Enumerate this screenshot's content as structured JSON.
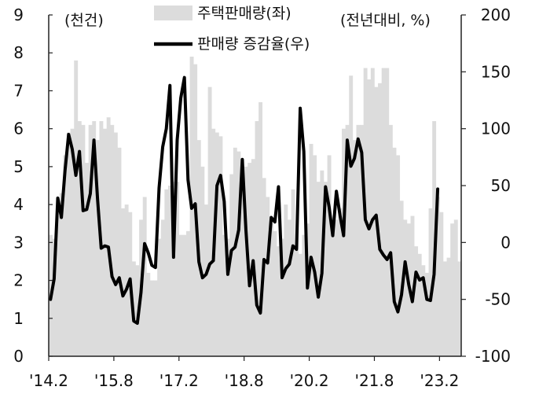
{
  "chart_data": {
    "type": "bar+line",
    "title": "",
    "left_axis": {
      "unit_label": "(천건)",
      "range": [
        0,
        9
      ],
      "ticks": [
        "0",
        "1",
        "2",
        "3",
        "4",
        "5",
        "6",
        "7",
        "8",
        "9"
      ]
    },
    "right_axis": {
      "unit_label": "(전년대비, %)",
      "range": [
        -100,
        200
      ],
      "ticks": [
        "-100",
        "-50",
        "0",
        "50",
        "100",
        "150",
        "200"
      ]
    },
    "x_axis": {
      "tick_labels": [
        "'14.2",
        "'15.8",
        "'17.2",
        "'18.8",
        "'20.2",
        "'21.8",
        "'23.2"
      ],
      "tick_indices": [
        0,
        18,
        36,
        54,
        72,
        90,
        108
      ]
    },
    "grid": false,
    "legend": {
      "placement": "top-center",
      "bar_label": "주택판매량(좌)",
      "line_label": "판매량 증감율(우)"
    },
    "colors": {
      "bar": "#dcdcdc",
      "line": "#000000",
      "axis": "#222222"
    },
    "bars": {
      "name": "주택판매량(좌)",
      "axis": "left",
      "values": [
        3.2,
        3.1,
        3.7,
        4.3,
        5.3,
        5.9,
        6.0,
        7.8,
        6.2,
        6.1,
        5.1,
        6.1,
        6.2,
        5.7,
        6.2,
        6.0,
        6.3,
        6.1,
        5.9,
        5.5,
        3.9,
        4.0,
        3.8,
        2.5,
        2.4,
        3.6,
        4.2,
        2.2,
        2.0,
        2.0,
        3.1,
        3.6,
        4.4,
        4.5,
        4.6,
        4.6,
        3.2,
        3.2,
        3.3,
        7.9,
        7.7,
        5.7,
        5.0,
        4.0,
        7.1,
        6.0,
        5.9,
        5.8,
        3.2,
        3.1,
        4.8,
        5.5,
        5.4,
        5.2,
        5.0,
        5.1,
        5.2,
        6.2,
        6.7,
        4.7,
        4.2,
        3.5,
        3.3,
        2.9,
        3.1,
        4.0,
        3.6,
        4.4,
        2.8,
        2.7,
        3.2,
        3.5,
        5.6,
        5.3,
        4.6,
        4.9,
        4.6,
        5.3,
        3.4,
        3.6,
        3.9,
        6.0,
        6.1,
        7.4,
        5.7,
        6.1,
        6.1,
        7.6,
        7.3,
        7.6,
        7.1,
        7.2,
        7.6,
        7.6,
        6.1,
        5.5,
        5.3,
        4.1,
        3.6,
        3.5,
        3.7,
        2.9,
        2.7,
        2.4,
        2.2,
        3.9,
        6.2,
        4.2,
        3.8,
        2.5,
        2.6,
        3.5,
        3.6,
        2.5
      ]
    },
    "line": {
      "name": "판매량 증감율(우)",
      "axis": "right",
      "values": [
        -50,
        -32,
        39,
        22,
        63,
        95,
        82,
        59,
        80,
        28,
        29,
        43,
        90,
        38,
        -5,
        -3,
        -4,
        -30,
        -37,
        -31,
        -47,
        -41,
        -32,
        -69,
        -71,
        -44,
        -1,
        -9,
        -20,
        -22,
        48,
        84,
        100,
        138,
        -13,
        90,
        127,
        145,
        55,
        30,
        34,
        -17,
        -31,
        -28,
        -19,
        -16,
        50,
        59,
        36,
        -28,
        -7,
        -4,
        11,
        73,
        11,
        -38,
        -16,
        -55,
        -62,
        -15,
        -18,
        22,
        18,
        49,
        -31,
        -23,
        -19,
        -3,
        -6,
        118,
        80,
        -40,
        -13,
        -26,
        -48,
        -27,
        49,
        31,
        6,
        45,
        24,
        6,
        90,
        67,
        74,
        91,
        79,
        20,
        12,
        20,
        24,
        -6,
        -11,
        -15,
        -9,
        -52,
        -61,
        -46,
        -17,
        -37,
        -52,
        -26,
        -33,
        -31,
        -50,
        -51,
        -28,
        47
      ]
    }
  }
}
